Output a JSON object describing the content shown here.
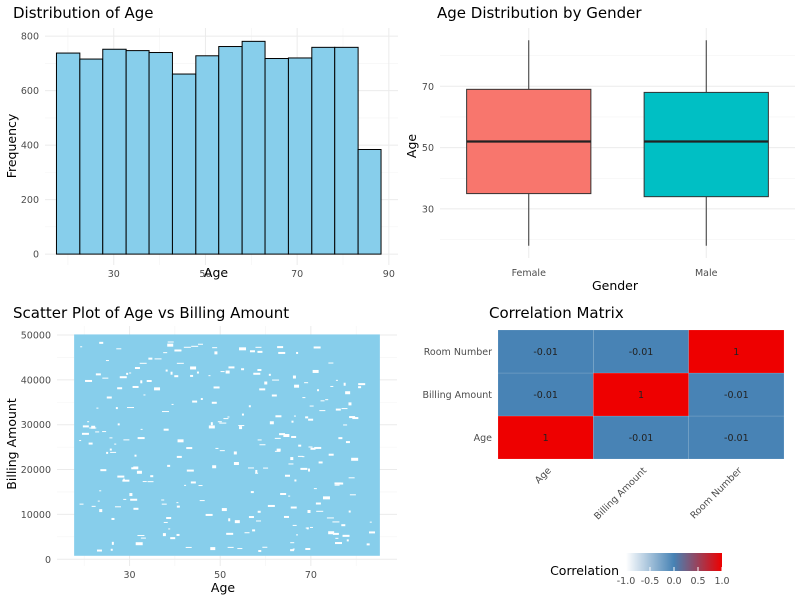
{
  "chart_data": [
    {
      "type": "bar",
      "subtype": "histogram",
      "title": "Distribution of Age",
      "xlabel": "Age",
      "ylabel": "Frequency",
      "bin_edges": [
        17.5,
        22.6,
        27.6,
        32.7,
        37.7,
        42.8,
        47.9,
        52.9,
        58.0,
        63.0,
        68.1,
        73.2,
        78.2,
        83.3,
        88.3
      ],
      "values": [
        738,
        716,
        752,
        747,
        740,
        661,
        728,
        762,
        781,
        718,
        720,
        759,
        759,
        384
      ],
      "xlim": [
        15,
        92
      ],
      "ylim": [
        -40,
        830
      ],
      "xticks": [
        30,
        50,
        70,
        90
      ],
      "yticks": [
        0,
        200,
        400,
        600,
        800
      ],
      "fill_color": "#87CEEB",
      "edge_color": "#000000"
    },
    {
      "type": "box",
      "title": "Age Distribution by Gender",
      "xlabel": "Gender",
      "ylabel": "Age",
      "categories": [
        "Female",
        "Male"
      ],
      "series": [
        {
          "name": "Female",
          "min": 18,
          "q1": 35,
          "median": 52,
          "q3": 69,
          "max": 85,
          "color": "#F8766D"
        },
        {
          "name": "Male",
          "min": 18,
          "q1": 34,
          "median": 52,
          "q3": 68,
          "max": 85,
          "color": "#00BFC4"
        }
      ],
      "ylim": [
        14,
        89
      ],
      "yticks": [
        30,
        50,
        70
      ]
    },
    {
      "type": "scatter",
      "title": "Scatter Plot of Age vs Billing Amount",
      "xlabel": "Age",
      "ylabel": "Billing Amount",
      "x_range": [
        18,
        85
      ],
      "y_range": [
        1000,
        49900
      ],
      "point_count": 10000,
      "xlim": [
        14,
        89
      ],
      "ylim": [
        -1500,
        52000
      ],
      "xticks": [
        30,
        50,
        70
      ],
      "yticks": [
        0,
        10000,
        20000,
        30000,
        40000,
        50000
      ],
      "color": "#87CEEB"
    },
    {
      "type": "heatmap",
      "title": "Correlation Matrix",
      "x_categories": [
        "Age",
        "Billing Amount",
        "Room Number"
      ],
      "y_categories": [
        "Age",
        "Billing Amount",
        "Room Number"
      ],
      "values": [
        [
          1,
          -0.01,
          -0.01
        ],
        [
          -0.01,
          1,
          -0.01
        ],
        [
          -0.01,
          -0.01,
          1
        ]
      ],
      "cell_labels": [
        [
          "1",
          "-0.01",
          "-0.01"
        ],
        [
          "-0.01",
          "1",
          "-0.01"
        ],
        [
          "-0.01",
          "-0.01",
          "1"
        ]
      ],
      "legend": {
        "title": "Correlation",
        "ticks": [
          -1.0,
          -0.5,
          0.0,
          0.5,
          1.0
        ],
        "tick_labels": [
          "-1.0",
          "-0.5",
          "0.0",
          "0.5",
          "1.0"
        ],
        "low_color": "#FFFFFF",
        "mid_color": "#4682B4",
        "high_color": "#EE0000",
        "position": "bottom"
      }
    }
  ]
}
